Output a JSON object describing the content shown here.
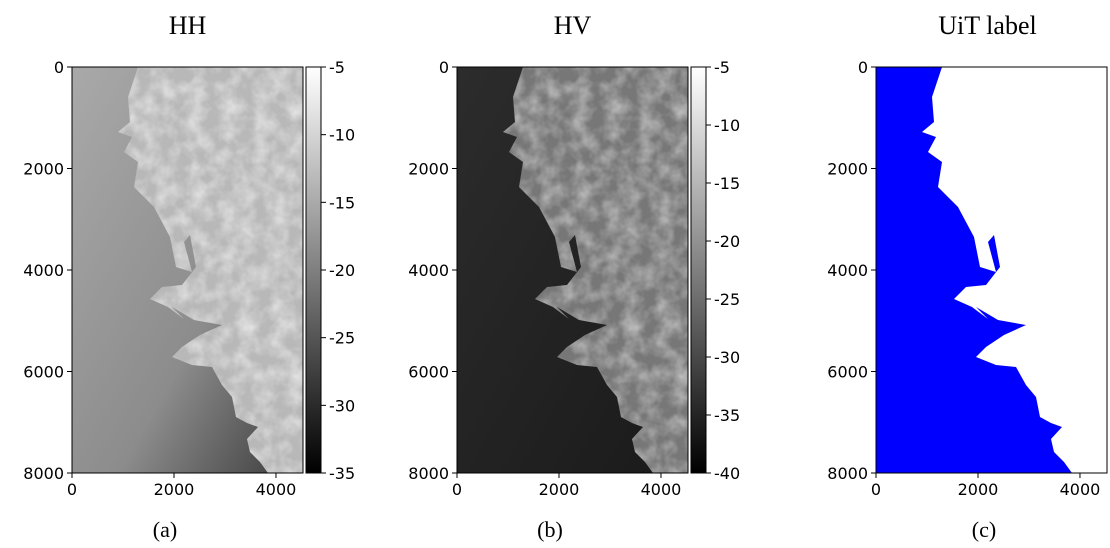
{
  "panels": [
    {
      "title": "HH",
      "caption": "(a)",
      "xlim": [
        0,
        4530
      ],
      "xticks": [
        0,
        2000,
        4000
      ],
      "ylim": [
        0,
        8000
      ],
      "yticks": [
        0,
        2000,
        4000,
        6000,
        8000
      ],
      "colorbar": {
        "lim": [
          -35,
          -5
        ],
        "ticks": [
          -5,
          -10,
          -15,
          -20,
          -25,
          -30,
          -35
        ]
      }
    },
    {
      "title": "HV",
      "caption": "(b)",
      "xlim": [
        0,
        4530
      ],
      "xticks": [
        0,
        2000,
        4000
      ],
      "ylim": [
        0,
        8000
      ],
      "yticks": [
        0,
        2000,
        4000,
        6000,
        8000
      ],
      "colorbar": {
        "lim": [
          -40,
          -5
        ],
        "ticks": [
          -5,
          -10,
          -15,
          -20,
          -25,
          -30,
          -35,
          -40
        ]
      }
    },
    {
      "title": "UiT label",
      "caption": "(c)",
      "xlim": [
        0,
        4530
      ],
      "xticks": [
        0,
        2000,
        4000
      ],
      "ylim": [
        0,
        8000
      ],
      "yticks": [
        0,
        2000,
        4000,
        6000,
        8000
      ]
    }
  ]
}
